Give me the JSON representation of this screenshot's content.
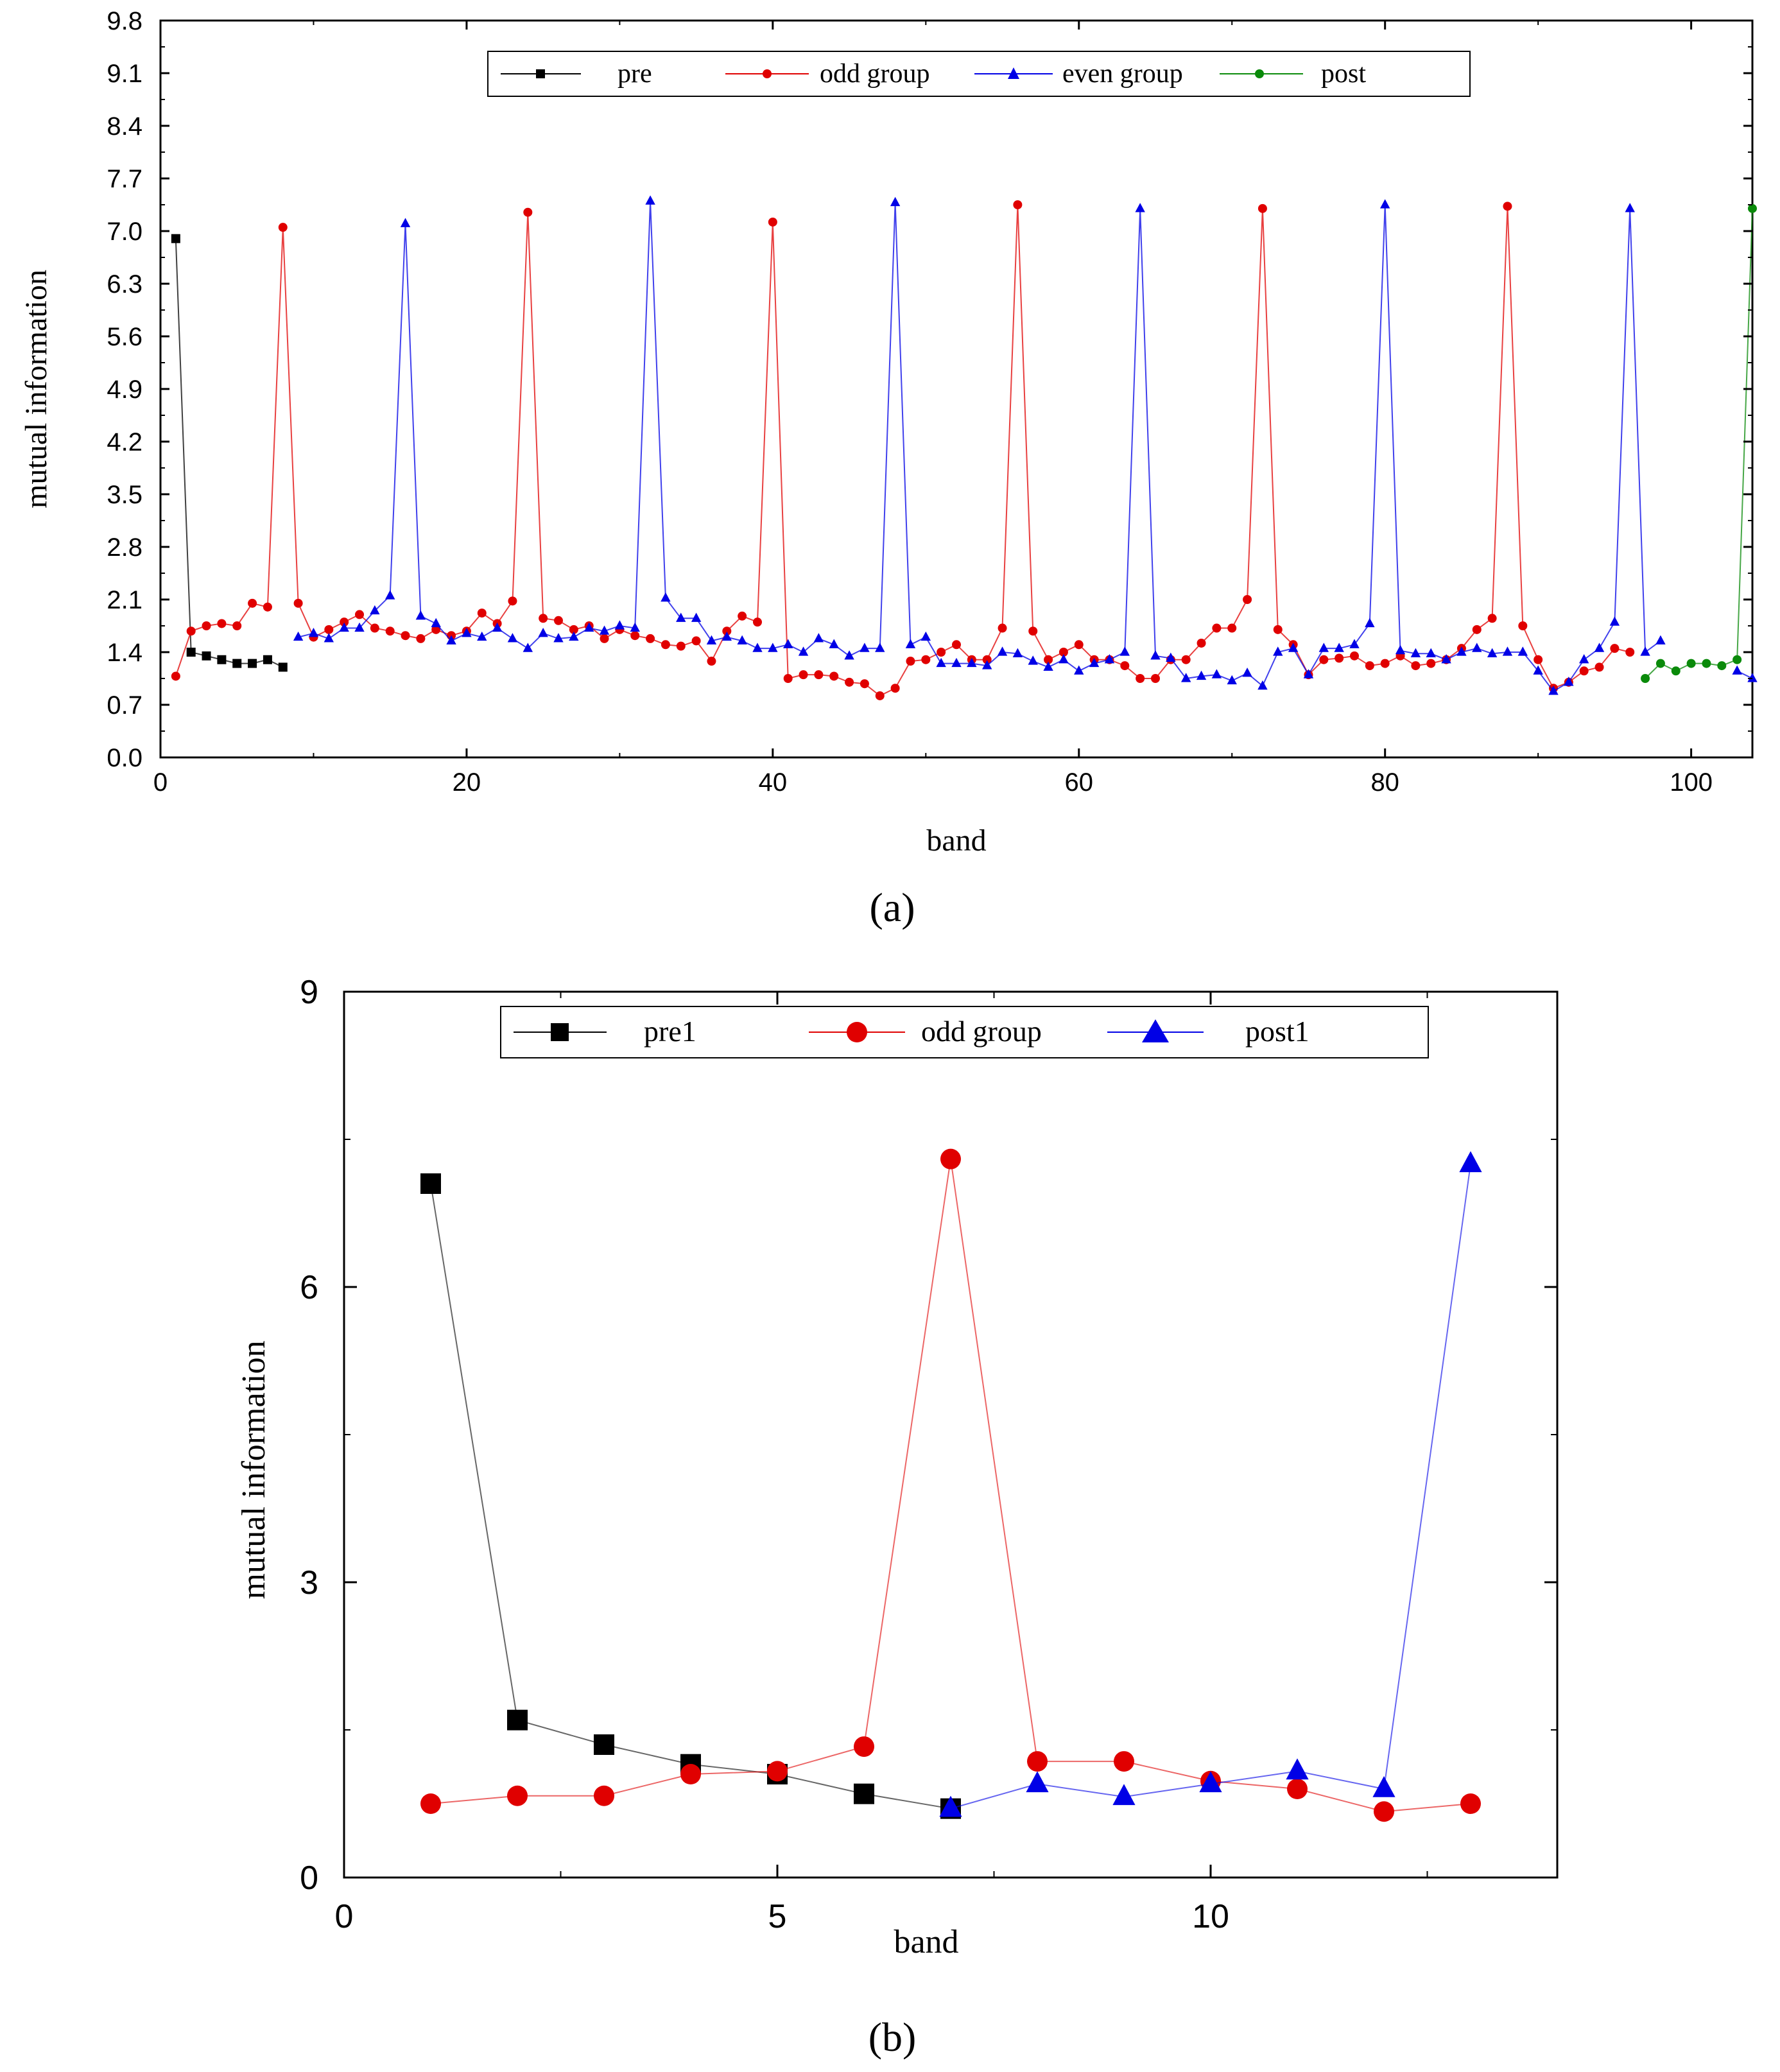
{
  "colors": {
    "pre": "#000000",
    "odd": "#e00000",
    "even": "#0000e6",
    "post": "#0a8a0a",
    "axis": "#000000"
  },
  "chart_data": [
    {
      "type": "line",
      "panel_label": "(a)",
      "xlabel": "band",
      "ylabel": "mutual information",
      "xlim": [
        0,
        104
      ],
      "ylim": [
        0,
        9.8
      ],
      "xticks": [
        0,
        20,
        40,
        60,
        80,
        100
      ],
      "xtick_labels": [
        "0",
        "20",
        "40",
        "60",
        "80",
        "100"
      ],
      "yticks": [
        0,
        0.7,
        1.4,
        2.1,
        2.8,
        3.5,
        4.2,
        4.9,
        5.6,
        6.3,
        7.0,
        7.7,
        8.4,
        9.1,
        9.8
      ],
      "ytick_labels": [
        "0.0",
        "0.7",
        "1.4",
        "2.1",
        "2.8",
        "3.5",
        "4.2",
        "4.9",
        "5.6",
        "6.3",
        "7.0",
        "7.7",
        "8.4",
        "9.1",
        "9.8"
      ],
      "legend": [
        "pre",
        "odd group",
        "even group",
        "post"
      ],
      "legend_position": "top-center",
      "series": [
        {
          "name": "pre",
          "color_key": "pre",
          "marker": "square",
          "x": [
            1,
            2,
            3,
            4,
            5,
            6,
            7,
            8
          ],
          "y": [
            6.9,
            1.4,
            1.35,
            1.3,
            1.25,
            1.25,
            1.3,
            1.2
          ]
        },
        {
          "name": "odd group",
          "color_key": "odd",
          "marker": "circle",
          "x": [
            1,
            2,
            3,
            4,
            5,
            6,
            7,
            8,
            9,
            10,
            11,
            12,
            13,
            14,
            15,
            16,
            17,
            18,
            19,
            20,
            21,
            22,
            23,
            24,
            25,
            26,
            27,
            28,
            29,
            30,
            31,
            32,
            33,
            34,
            35,
            36,
            37,
            38,
            39,
            40,
            41,
            42,
            43,
            44,
            45,
            46,
            47,
            48,
            49,
            50,
            51,
            52,
            53,
            54,
            55,
            56,
            57,
            58,
            59,
            60,
            61,
            62,
            63,
            64,
            65,
            66,
            67,
            68,
            69,
            70,
            71,
            72,
            73,
            74,
            75,
            76,
            77,
            78,
            79,
            80,
            81,
            82,
            83,
            84,
            85,
            86,
            87,
            88,
            89,
            90,
            91,
            92,
            93,
            94,
            95,
            96
          ],
          "y": [
            1.08,
            1.68,
            1.75,
            1.78,
            1.75,
            2.05,
            2.0,
            7.05,
            2.05,
            1.6,
            1.7,
            1.8,
            1.9,
            1.72,
            1.68,
            1.62,
            1.58,
            1.7,
            1.62,
            1.68,
            1.92,
            1.78,
            2.08,
            7.25,
            1.85,
            1.82,
            1.7,
            1.75,
            1.58,
            1.7,
            1.62,
            1.58,
            1.5,
            1.48,
            1.55,
            1.28,
            1.68,
            1.88,
            1.8,
            7.12,
            1.05,
            1.1,
            1.1,
            1.08,
            1.0,
            0.98,
            0.82,
            0.92,
            1.28,
            1.3,
            1.4,
            1.5,
            1.3,
            1.3,
            1.72,
            7.35,
            1.68,
            1.3,
            1.4,
            1.5,
            1.3,
            1.3,
            1.22,
            1.05,
            1.05,
            1.3,
            1.3,
            1.52,
            1.72,
            1.72,
            2.1,
            7.3,
            1.7,
            1.5,
            1.1,
            1.3,
            1.32,
            1.35,
            1.22,
            1.25,
            1.35,
            1.22,
            1.25,
            1.3,
            1.45,
            1.7,
            1.85,
            7.33,
            1.75,
            1.3,
            0.92,
            1.0,
            1.15,
            1.2,
            1.45,
            1.4
          ]
        },
        {
          "name": "even group",
          "color_key": "even",
          "marker": "triangle",
          "x": [
            9,
            10,
            11,
            12,
            13,
            14,
            15,
            16,
            17,
            18,
            19,
            20,
            21,
            22,
            23,
            24,
            25,
            26,
            27,
            28,
            29,
            30,
            31,
            32,
            33,
            34,
            35,
            36,
            37,
            38,
            39,
            40,
            41,
            42,
            43,
            44,
            45,
            46,
            47,
            48,
            49,
            50,
            51,
            52,
            53,
            54,
            55,
            56,
            57,
            58,
            59,
            60,
            61,
            62,
            63,
            64,
            65,
            66,
            67,
            68,
            69,
            70,
            71,
            72,
            73,
            74,
            75,
            76,
            77,
            78,
            79,
            80,
            81,
            82,
            83,
            84,
            85,
            86,
            87,
            88,
            89,
            90,
            91,
            92,
            93,
            94,
            95,
            96,
            97,
            98,
            99,
            100,
            101,
            102,
            103,
            104
          ],
          "y": [
            1.6,
            1.65,
            1.58,
            1.72,
            1.72,
            1.95,
            2.15,
            7.1,
            1.88,
            1.78,
            1.55,
            1.65,
            1.6,
            1.72,
            1.58,
            1.45,
            1.65,
            1.58,
            1.6,
            1.72,
            1.68,
            1.75,
            1.72,
            7.4,
            2.12,
            1.85,
            1.85,
            1.55,
            1.6,
            1.55,
            1.45,
            1.45,
            1.5,
            1.4,
            1.58,
            1.5,
            1.35,
            1.45,
            1.45,
            7.38,
            1.5,
            1.6,
            1.25,
            1.25,
            1.25,
            1.22,
            1.4,
            1.38,
            1.28,
            1.2,
            1.3,
            1.15,
            1.25,
            1.3,
            1.4,
            7.3,
            1.35,
            1.32,
            1.05,
            1.08,
            1.1,
            1.02,
            1.12,
            0.95,
            1.4,
            1.45,
            1.1,
            1.45,
            1.45,
            1.5,
            1.78,
            7.35,
            1.42,
            1.38,
            1.38,
            1.3,
            1.4,
            1.45,
            1.38,
            1.4,
            1.4,
            1.15,
            0.88,
            1.0,
            1.3,
            1.45,
            1.8,
            7.3,
            1.4,
            1.55,
            null,
            null,
            null,
            null,
            1.15,
            1.05
          ]
        },
        {
          "name": "post",
          "color_key": "post",
          "marker": "circle",
          "x": [
            97,
            98,
            99,
            100,
            101,
            102,
            103,
            104
          ],
          "y": [
            1.05,
            1.25,
            1.15,
            1.25,
            1.25,
            1.22,
            1.3,
            7.3
          ]
        }
      ]
    },
    {
      "type": "line",
      "panel_label": "(b)",
      "xlabel": "band",
      "ylabel": "mutual information",
      "xlim": [
        0,
        14
      ],
      "ylim": [
        0,
        9
      ],
      "xticks": [
        0,
        5,
        10
      ],
      "xtick_labels": [
        "0",
        "5",
        "10"
      ],
      "yticks": [
        0,
        3,
        6,
        9
      ],
      "ytick_labels": [
        "0",
        "3",
        "6",
        "9"
      ],
      "legend": [
        "pre1",
        "odd group",
        "post1"
      ],
      "legend_position": "top-center",
      "series": [
        {
          "name": "pre1",
          "color_key": "pre",
          "marker": "square",
          "x": [
            1,
            2,
            3,
            4,
            5,
            6,
            7
          ],
          "y": [
            7.05,
            1.6,
            1.35,
            1.15,
            1.05,
            0.85,
            0.7
          ]
        },
        {
          "name": "odd group",
          "color_key": "odd",
          "marker": "circle",
          "x": [
            1,
            2,
            3,
            4,
            5,
            6,
            7,
            8,
            9,
            10,
            11,
            12,
            13
          ],
          "y": [
            0.75,
            0.83,
            0.83,
            1.05,
            1.08,
            1.33,
            7.3,
            1.18,
            1.18,
            0.98,
            0.9,
            0.67,
            0.75
          ]
        },
        {
          "name": "post1",
          "color_key": "even",
          "marker": "triangle",
          "x": [
            7,
            8,
            9,
            10,
            11,
            12,
            13
          ],
          "y": [
            0.7,
            0.95,
            0.82,
            0.95,
            1.08,
            0.9,
            7.25
          ]
        }
      ]
    }
  ]
}
